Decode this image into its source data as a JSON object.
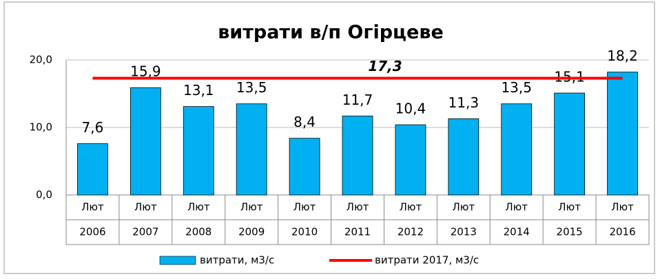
{
  "chart_data": {
    "type": "bar",
    "title": "витрати в/п Огірцеве",
    "categories": [
      [
        "Лют",
        "2006"
      ],
      [
        "Лют",
        "2007"
      ],
      [
        "Лют",
        "2008"
      ],
      [
        "Лют",
        "2009"
      ],
      [
        "Лют",
        "2010"
      ],
      [
        "Лют",
        "2011"
      ],
      [
        "Лют",
        "2012"
      ],
      [
        "Лют",
        "2013"
      ],
      [
        "Лют",
        "2014"
      ],
      [
        "Лют",
        "2015"
      ],
      [
        "Лют",
        "2016"
      ]
    ],
    "series": [
      {
        "name": "витрати, м3/с",
        "color": "#00b0f0",
        "values": [
          7.6,
          15.9,
          13.1,
          13.5,
          8.4,
          11.7,
          10.4,
          11.3,
          13.5,
          15.1,
          18.2
        ],
        "value_labels": [
          "7,6",
          "15,9",
          "13,1",
          "13,5",
          "8,4",
          "11,7",
          "10,4",
          "11,3",
          "13,5",
          "15,1",
          "18,2"
        ]
      }
    ],
    "reference_line": {
      "name": "витрати 2017, м3/с",
      "color": "#ff0000",
      "value": 17.3,
      "value_label": "17,3"
    },
    "ylim": [
      0,
      20
    ],
    "yticks": [
      {
        "value": 0,
        "label": "0,0"
      },
      {
        "value": 10,
        "label": "10,0"
      },
      {
        "value": 20,
        "label": "20,0"
      }
    ],
    "grid": true,
    "legend": "bottom"
  }
}
